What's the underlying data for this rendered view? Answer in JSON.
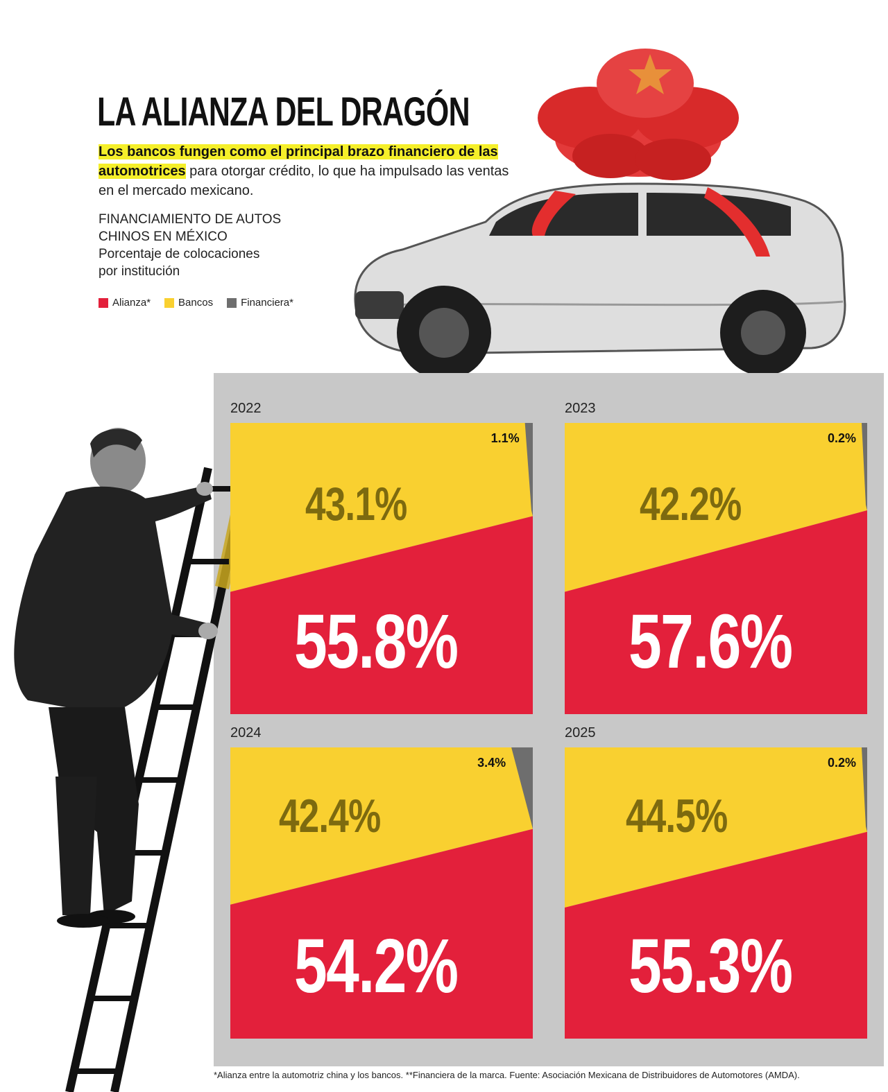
{
  "header": {
    "title": "LA ALIANZA DEL DRAGÓN",
    "subtitle_highlight": "Los bancos fungen como el principal brazo financiero de las automotrices",
    "subtitle_rest": " para otorgar crédito, lo que ha impulsado las ventas en el mercado mexicano."
  },
  "chart_label": {
    "line1": "FINANCIAMIENTO DE AUTOS",
    "line2": "CHINOS EN MÉXICO",
    "line3": "Porcentaje de colocaciones",
    "line4": "por institución"
  },
  "legend": {
    "alianza": "Alianza*",
    "bancos": "Bancos",
    "financiera": "Financiera*"
  },
  "colors": {
    "alianza": "#e3203b",
    "bancos": "#f9d030",
    "financiera": "#6e6e6e",
    "panel": "#c8c8c8"
  },
  "chart_data": {
    "type": "area",
    "unit": "%",
    "series_keys": [
      "Alianza*",
      "Bancos",
      "Financiera*"
    ],
    "panels": [
      {
        "year": "2022",
        "alianza": 55.8,
        "bancos": 43.1,
        "financiera": 1.1,
        "alianza_label": "55.8%",
        "bancos_label": "43.1%",
        "financiera_label": "1.1%"
      },
      {
        "year": "2023",
        "alianza": 57.6,
        "bancos": 42.2,
        "financiera": 0.2,
        "alianza_label": "57.6%",
        "bancos_label": "42.2%",
        "financiera_label": "0.2%"
      },
      {
        "year": "2024",
        "alianza": 54.2,
        "bancos": 42.4,
        "financiera": 3.4,
        "alianza_label": "54.2%",
        "bancos_label": "42.4%",
        "financiera_label": "3.4%"
      },
      {
        "year": "2025",
        "alianza": 55.3,
        "bancos": 44.5,
        "financiera": 0.2,
        "alianza_label": "55.3%",
        "bancos_label": "44.5%",
        "financiera_label": "0.2%"
      }
    ]
  },
  "footnote": "*Alianza entre la automotriz china y los bancos. **Financiera de la marca. Fuente: Asociación Mexicana de Distribuidores de Automotores (AMDA)."
}
